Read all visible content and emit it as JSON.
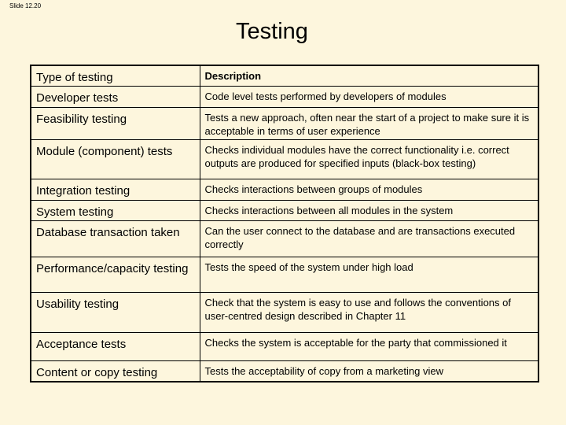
{
  "slide_label": "Slide 12.20",
  "title": "Testing",
  "table": {
    "header": [
      "Type of testing",
      "Description"
    ],
    "rows": [
      [
        "Developer tests",
        "Code level tests performed by developers of modules"
      ],
      [
        "Feasibility testing",
        "Tests a new approach, often near the start of a project to make sure it is acceptable in terms of user experience"
      ],
      [
        "Module (component) tests",
        "Checks individual modules have the correct functionality i.e. correct outputs are produced for specified inputs (black-box testing)"
      ],
      [
        "Integration testing",
        "Checks interactions between groups of modules"
      ],
      [
        "System testing",
        "Checks interactions between all modules in the system"
      ],
      [
        "Database transaction taken",
        "Can the user connect to the database and are transactions executed correctly"
      ],
      [
        "Performance/capacity testing",
        "Tests the speed of the system under high load"
      ],
      [
        "Usability testing",
        "Check that the system is easy to use and follows the conventions of user-centred design described in Chapter 11"
      ],
      [
        "Acceptance tests",
        "Checks the system is acceptable for the party that commissioned it"
      ],
      [
        "Content or copy testing",
        "Tests the acceptability of copy from a marketing view"
      ]
    ]
  }
}
